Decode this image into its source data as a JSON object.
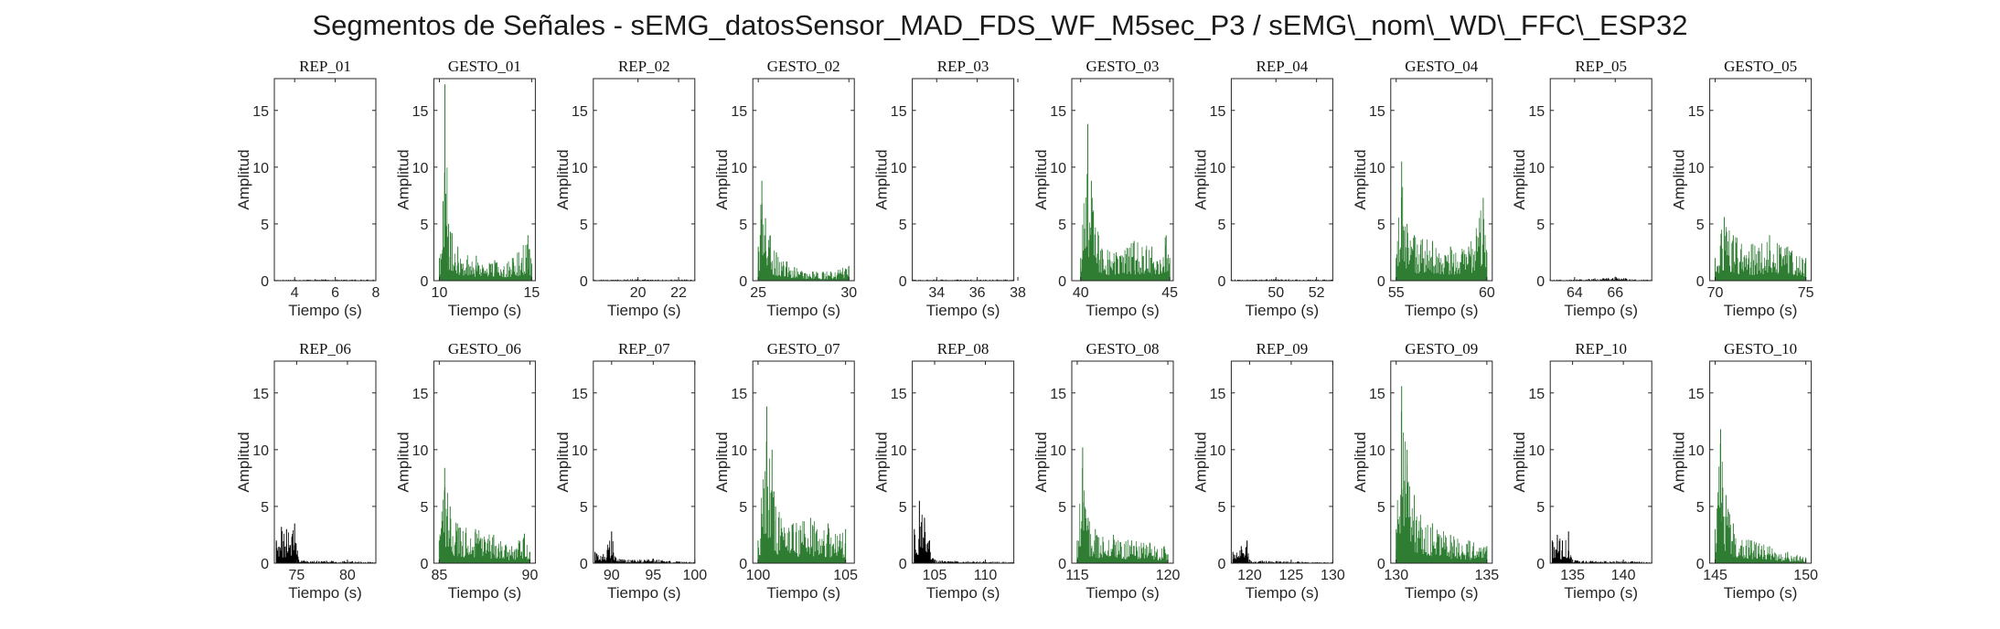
{
  "figure": {
    "title": "Segmentos de Señales - sEMG_datosSensor_MAD_FDS_WF_M5sec_P3 / sEMG\\_nom\\_WD\\_FFC\\_ESP32",
    "colors": {
      "rep": "#000000",
      "gesto": "#2e7d32",
      "axis": "#262626"
    }
  },
  "chart_data": [
    {
      "type": "bar",
      "title": "REP_01",
      "kind": "rep",
      "xlabel": "Tiempo (s)",
      "ylabel": "Amplitud",
      "xlim": [
        3,
        8
      ],
      "ylim": [
        0,
        17.8
      ],
      "xticks": [
        4,
        6,
        8
      ],
      "yticks": [
        0,
        5,
        10,
        15
      ],
      "series": [
        {
          "name": "",
          "points": [
            [
              3,
              0.1
            ],
            [
              4,
              0.1
            ],
            [
              5,
              0.12
            ],
            [
              6,
              0.1
            ],
            [
              7,
              0.1
            ],
            [
              8,
              0.1
            ]
          ]
        }
      ]
    },
    {
      "type": "bar",
      "title": "GESTO_01",
      "kind": "gesto",
      "xlabel": "Tiempo (s)",
      "ylabel": "Amplitud",
      "xlim": [
        9.7,
        15.2
      ],
      "ylim": [
        0,
        17.8
      ],
      "xticks": [
        10,
        15
      ],
      "yticks": [
        0,
        5,
        10,
        15
      ],
      "series": [
        {
          "name": "",
          "points": [
            [
              10.0,
              2.0
            ],
            [
              10.2,
              7.0
            ],
            [
              10.3,
              17.3
            ],
            [
              10.5,
              5.0
            ],
            [
              11.0,
              3.0
            ],
            [
              12.0,
              2.2
            ],
            [
              13.0,
              1.8
            ],
            [
              14.0,
              2.0
            ],
            [
              14.8,
              4.0
            ],
            [
              15.0,
              1.5
            ]
          ]
        }
      ]
    },
    {
      "type": "bar",
      "title": "REP_02",
      "kind": "rep",
      "xlabel": "Tiempo (s)",
      "ylabel": "Amplitud",
      "xlim": [
        17.8,
        22.8
      ],
      "ylim": [
        0,
        17.8
      ],
      "xticks": [
        20,
        22
      ],
      "yticks": [
        0,
        5,
        10,
        15
      ],
      "series": [
        {
          "name": "",
          "points": [
            [
              17.8,
              0.1
            ],
            [
              19,
              0.1
            ],
            [
              20,
              0.15
            ],
            [
              21,
              0.1
            ],
            [
              22,
              0.1
            ],
            [
              22.8,
              0.1
            ]
          ]
        }
      ]
    },
    {
      "type": "bar",
      "title": "GESTO_02",
      "kind": "gesto",
      "xlabel": "Tiempo (s)",
      "ylabel": "Amplitud",
      "xlim": [
        24.7,
        30.3
      ],
      "ylim": [
        0,
        17.8
      ],
      "xticks": [
        25,
        30
      ],
      "yticks": [
        0,
        5,
        10,
        15
      ],
      "series": [
        {
          "name": "",
          "points": [
            [
              25.0,
              3.0
            ],
            [
              25.2,
              8.8
            ],
            [
              25.4,
              5.5
            ],
            [
              26.0,
              2.5
            ],
            [
              27.0,
              1.2
            ],
            [
              28.0,
              0.8
            ],
            [
              29.0,
              0.8
            ],
            [
              30.0,
              1.3
            ]
          ]
        }
      ]
    },
    {
      "type": "bar",
      "title": "REP_03",
      "kind": "rep",
      "xlabel": "Tiempo (s)",
      "ylabel": "Amplitud",
      "xlim": [
        32.8,
        37.8
      ],
      "ylim": [
        0,
        17.8
      ],
      "xticks": [
        34,
        36,
        38
      ],
      "yticks": [
        0,
        5,
        10,
        15
      ],
      "series": [
        {
          "name": "",
          "points": [
            [
              32.8,
              0.1
            ],
            [
              34,
              0.1
            ],
            [
              35,
              0.1
            ],
            [
              36,
              0.1
            ],
            [
              37,
              0.1
            ],
            [
              37.8,
              0.1
            ]
          ]
        }
      ]
    },
    {
      "type": "bar",
      "title": "GESTO_03",
      "kind": "gesto",
      "xlabel": "Tiempo (s)",
      "ylabel": "Amplitud",
      "xlim": [
        39.5,
        45.2
      ],
      "ylim": [
        0,
        17.8
      ],
      "xticks": [
        40,
        45
      ],
      "yticks": [
        0,
        5,
        10,
        15
      ],
      "series": [
        {
          "name": "",
          "points": [
            [
              40.0,
              2.0
            ],
            [
              40.4,
              13.8
            ],
            [
              40.6,
              8.8
            ],
            [
              41.0,
              4.0
            ],
            [
              42.0,
              2.5
            ],
            [
              43.0,
              3.5
            ],
            [
              44.0,
              3.0
            ],
            [
              44.8,
              4.0
            ],
            [
              45.0,
              2.0
            ]
          ]
        }
      ]
    },
    {
      "type": "bar",
      "title": "REP_04",
      "kind": "rep",
      "xlabel": "Tiempo (s)",
      "ylabel": "Amplitud",
      "xlim": [
        47.8,
        52.8
      ],
      "ylim": [
        0,
        17.8
      ],
      "xticks": [
        50,
        52
      ],
      "yticks": [
        0,
        5,
        10,
        15
      ],
      "series": [
        {
          "name": "",
          "points": [
            [
              47.8,
              0.1
            ],
            [
              49,
              0.1
            ],
            [
              50,
              0.15
            ],
            [
              51,
              0.1
            ],
            [
              52,
              0.1
            ],
            [
              52.8,
              0.1
            ]
          ]
        }
      ]
    },
    {
      "type": "bar",
      "title": "GESTO_04",
      "kind": "gesto",
      "xlabel": "Tiempo (s)",
      "ylabel": "Amplitud",
      "xlim": [
        54.7,
        60.3
      ],
      "ylim": [
        0,
        17.8
      ],
      "xticks": [
        55,
        60
      ],
      "yticks": [
        0,
        5,
        10,
        15
      ],
      "series": [
        {
          "name": "",
          "points": [
            [
              55.0,
              2.0
            ],
            [
              55.3,
              10.5
            ],
            [
              55.6,
              5.0
            ],
            [
              56.0,
              4.0
            ],
            [
              57.0,
              3.5
            ],
            [
              58.0,
              3.0
            ],
            [
              59.0,
              3.0
            ],
            [
              59.8,
              7.3
            ],
            [
              60.0,
              2.5
            ]
          ]
        }
      ]
    },
    {
      "type": "bar",
      "title": "REP_05",
      "kind": "rep",
      "xlabel": "Tiempo (s)",
      "ylabel": "Amplitud",
      "xlim": [
        62.8,
        67.8
      ],
      "ylim": [
        0,
        17.8
      ],
      "xticks": [
        64,
        66
      ],
      "yticks": [
        0,
        5,
        10,
        15
      ],
      "series": [
        {
          "name": "",
          "points": [
            [
              62.8,
              0.1
            ],
            [
              64,
              0.1
            ],
            [
              65,
              0.2
            ],
            [
              66,
              0.35
            ],
            [
              67,
              0.1
            ],
            [
              67.8,
              0.1
            ]
          ]
        }
      ]
    },
    {
      "type": "bar",
      "title": "GESTO_05",
      "kind": "gesto",
      "xlabel": "Tiempo (s)",
      "ylabel": "Amplitud",
      "xlim": [
        69.7,
        75.3
      ],
      "ylim": [
        0,
        17.8
      ],
      "xticks": [
        70,
        75
      ],
      "yticks": [
        0,
        5,
        10,
        15
      ],
      "series": [
        {
          "name": "",
          "points": [
            [
              70.0,
              2.0
            ],
            [
              70.5,
              5.6
            ],
            [
              71.0,
              4.0
            ],
            [
              72.0,
              3.2
            ],
            [
              73.0,
              4.0
            ],
            [
              74.0,
              3.0
            ],
            [
              75.0,
              2.0
            ]
          ]
        }
      ]
    },
    {
      "type": "bar",
      "title": "REP_06",
      "kind": "rep",
      "xlabel": "Tiempo (s)",
      "ylabel": "Amplitud",
      "xlim": [
        72.8,
        82.8
      ],
      "ylim": [
        0,
        17.8
      ],
      "xticks": [
        75,
        80
      ],
      "yticks": [
        0,
        5,
        10,
        15
      ],
      "series": [
        {
          "name": "",
          "points": [
            [
              73.0,
              2.0
            ],
            [
              73.5,
              3.2
            ],
            [
              74.0,
              3.0
            ],
            [
              74.8,
              3.5
            ],
            [
              75.2,
              0.3
            ],
            [
              77,
              0.2
            ],
            [
              80,
              0.2
            ],
            [
              82.8,
              0.1
            ]
          ]
        }
      ]
    },
    {
      "type": "bar",
      "title": "GESTO_06",
      "kind": "gesto",
      "xlabel": "Tiempo (s)",
      "ylabel": "Amplitud",
      "xlim": [
        84.7,
        90.3
      ],
      "ylim": [
        0,
        17.8
      ],
      "xticks": [
        85,
        90
      ],
      "yticks": [
        0,
        5,
        10,
        15
      ],
      "series": [
        {
          "name": "",
          "points": [
            [
              85.0,
              2.0
            ],
            [
              85.3,
              8.4
            ],
            [
              85.6,
              5.0
            ],
            [
              86.0,
              3.5
            ],
            [
              87.0,
              3.0
            ],
            [
              88.0,
              2.5
            ],
            [
              89.0,
              1.5
            ],
            [
              89.7,
              2.6
            ],
            [
              90.0,
              1.0
            ]
          ]
        }
      ]
    },
    {
      "type": "bar",
      "title": "REP_07",
      "kind": "rep",
      "xlabel": "Tiempo (s)",
      "ylabel": "Amplitud",
      "xlim": [
        87.8,
        100
      ],
      "ylim": [
        0,
        17.8
      ],
      "xticks": [
        90,
        95,
        100
      ],
      "yticks": [
        0,
        5,
        10,
        15
      ],
      "series": [
        {
          "name": "",
          "points": [
            [
              88.0,
              1.0
            ],
            [
              89.0,
              0.8
            ],
            [
              90.0,
              2.8
            ],
            [
              90.5,
              0.5
            ],
            [
              92,
              0.3
            ],
            [
              95,
              0.4
            ],
            [
              97,
              0.2
            ],
            [
              100,
              0.1
            ]
          ]
        }
      ]
    },
    {
      "type": "bar",
      "title": "GESTO_07",
      "kind": "gesto",
      "xlabel": "Tiempo (s)",
      "ylabel": "Amplitud",
      "xlim": [
        99.7,
        105.5
      ],
      "ylim": [
        0,
        17.8
      ],
      "xticks": [
        100,
        105
      ],
      "yticks": [
        0,
        5,
        10,
        15
      ],
      "series": [
        {
          "name": "",
          "points": [
            [
              100.0,
              2.0
            ],
            [
              100.5,
              13.8
            ],
            [
              100.8,
              10.0
            ],
            [
              101.0,
              5.0
            ],
            [
              102.0,
              3.5
            ],
            [
              103.0,
              4.0
            ],
            [
              104.0,
              3.5
            ],
            [
              105.0,
              3.0
            ]
          ]
        }
      ]
    },
    {
      "type": "bar",
      "title": "REP_08",
      "kind": "rep",
      "xlabel": "Tiempo (s)",
      "ylabel": "Amplitud",
      "xlim": [
        102.8,
        112.8
      ],
      "ylim": [
        0,
        17.8
      ],
      "xticks": [
        105,
        110
      ],
      "yticks": [
        0,
        5,
        10,
        15
      ],
      "series": [
        {
          "name": "",
          "points": [
            [
              103.0,
              3.0
            ],
            [
              103.5,
              5.5
            ],
            [
              104.0,
              4.0
            ],
            [
              104.5,
              2.0
            ],
            [
              105.0,
              0.3
            ],
            [
              107,
              0.2
            ],
            [
              110,
              0.2
            ],
            [
              112.8,
              0.1
            ]
          ]
        }
      ]
    },
    {
      "type": "bar",
      "title": "GESTO_08",
      "kind": "gesto",
      "xlabel": "Tiempo (s)",
      "ylabel": "Amplitud",
      "xlim": [
        114.7,
        120.3
      ],
      "ylim": [
        0,
        17.8
      ],
      "xticks": [
        115,
        120
      ],
      "yticks": [
        0,
        5,
        10,
        15
      ],
      "series": [
        {
          "name": "",
          "points": [
            [
              115.0,
              2.0
            ],
            [
              115.3,
              10.2
            ],
            [
              115.6,
              4.0
            ],
            [
              116.0,
              3.0
            ],
            [
              117.0,
              2.5
            ],
            [
              118.0,
              2.0
            ],
            [
              119.0,
              1.8
            ],
            [
              119.8,
              1.5
            ],
            [
              120.0,
              0.8
            ]
          ]
        }
      ]
    },
    {
      "type": "bar",
      "title": "REP_09",
      "kind": "rep",
      "xlabel": "Tiempo (s)",
      "ylabel": "Amplitud",
      "xlim": [
        117.8,
        130
      ],
      "ylim": [
        0,
        17.8
      ],
      "xticks": [
        120,
        125,
        130
      ],
      "yticks": [
        0,
        5,
        10,
        15
      ],
      "series": [
        {
          "name": "",
          "points": [
            [
              118.0,
              1.0
            ],
            [
              119.0,
              1.5
            ],
            [
              119.7,
              2.0
            ],
            [
              120.0,
              0.3
            ],
            [
              122,
              0.2
            ],
            [
              125,
              0.2
            ],
            [
              127,
              0.1
            ],
            [
              130,
              0.1
            ]
          ]
        }
      ]
    },
    {
      "type": "bar",
      "title": "GESTO_09",
      "kind": "gesto",
      "xlabel": "Tiempo (s)",
      "ylabel": "Amplitud",
      "xlim": [
        129.7,
        135.3
      ],
      "ylim": [
        0,
        17.8
      ],
      "xticks": [
        130,
        135
      ],
      "yticks": [
        0,
        5,
        10,
        15
      ],
      "series": [
        {
          "name": "",
          "points": [
            [
              130.0,
              3.0
            ],
            [
              130.3,
              15.6
            ],
            [
              130.6,
              10.0
            ],
            [
              131.0,
              6.0
            ],
            [
              132.0,
              3.5
            ],
            [
              133.0,
              2.5
            ],
            [
              134.0,
              2.0
            ],
            [
              135.0,
              1.5
            ]
          ]
        }
      ]
    },
    {
      "type": "bar",
      "title": "REP_10",
      "kind": "rep",
      "xlabel": "Tiempo (s)",
      "ylabel": "Amplitud",
      "xlim": [
        132.8,
        142.8
      ],
      "ylim": [
        0,
        17.8
      ],
      "xticks": [
        135,
        140
      ],
      "yticks": [
        0,
        5,
        10,
        15
      ],
      "series": [
        {
          "name": "",
          "points": [
            [
              133.0,
              2.0
            ],
            [
              133.5,
              2.5
            ],
            [
              134.0,
              2.0
            ],
            [
              134.6,
              2.8
            ],
            [
              135.0,
              0.3
            ],
            [
              137,
              0.2
            ],
            [
              140,
              0.2
            ],
            [
              142.8,
              0.1
            ]
          ]
        }
      ]
    },
    {
      "type": "bar",
      "title": "GESTO_10",
      "kind": "gesto",
      "xlabel": "Tiempo (s)",
      "ylabel": "Amplitud",
      "xlim": [
        144.7,
        150.3
      ],
      "ylim": [
        0,
        17.8
      ],
      "xticks": [
        145,
        150
      ],
      "yticks": [
        0,
        5,
        10,
        15
      ],
      "series": [
        {
          "name": "",
          "points": [
            [
              145.0,
              3.0
            ],
            [
              145.3,
              11.8
            ],
            [
              145.6,
              6.0
            ],
            [
              146.0,
              3.5
            ],
            [
              147.0,
              2.0
            ],
            [
              148.0,
              1.5
            ],
            [
              149.0,
              1.0
            ],
            [
              150.0,
              0.5
            ]
          ]
        }
      ]
    }
  ]
}
